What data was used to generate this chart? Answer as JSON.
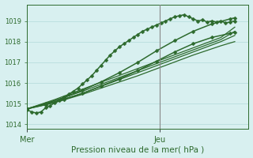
{
  "title": "",
  "xlabel": "Pression niveau de la mer( hPa )",
  "bg_color": "#d8f0f0",
  "grid_color": "#b8dede",
  "line_color": "#2d6a2d",
  "axis_label_color": "#2d6a2d",
  "tick_color": "#2d6a2d",
  "vline_color": "#888888",
  "ylim": [
    1013.8,
    1019.8
  ],
  "yticks": [
    1014,
    1015,
    1016,
    1017,
    1018,
    1019
  ],
  "xlim": [
    0,
    48
  ],
  "x_mer": 0,
  "x_jeu": 28.8,
  "lines": [
    {
      "x": [
        0,
        1,
        2,
        3,
        4,
        5,
        6,
        7,
        8,
        9,
        10,
        11,
        12,
        13,
        14,
        15,
        16,
        17,
        18,
        19,
        20,
        21,
        22,
        23,
        24,
        25,
        26,
        27,
        28,
        29,
        30,
        31,
        32,
        33,
        34,
        35,
        36,
        37,
        38,
        39,
        40,
        41,
        42,
        43,
        44,
        45
      ],
      "y": [
        1014.7,
        1014.6,
        1014.55,
        1014.6,
        1014.8,
        1014.9,
        1015.05,
        1015.15,
        1015.3,
        1015.45,
        1015.6,
        1015.75,
        1015.95,
        1016.15,
        1016.35,
        1016.6,
        1016.85,
        1017.1,
        1017.35,
        1017.55,
        1017.75,
        1017.9,
        1018.05,
        1018.2,
        1018.35,
        1018.5,
        1018.6,
        1018.7,
        1018.8,
        1018.9,
        1019.0,
        1019.1,
        1019.2,
        1019.25,
        1019.3,
        1019.2,
        1019.1,
        1019.0,
        1019.05,
        1018.95,
        1019.0,
        1018.95,
        1019.0,
        1018.9,
        1018.95,
        1019.0
      ],
      "marker": "D",
      "ms": 2.5,
      "lw": 1.1
    },
    {
      "x": [
        0,
        6,
        12,
        18,
        24,
        30,
        36,
        42,
        45
      ],
      "y": [
        1014.75,
        1015.05,
        1015.45,
        1015.9,
        1016.35,
        1016.85,
        1017.35,
        1017.8,
        1018.0
      ],
      "marker": null,
      "ms": 0,
      "lw": 0.9
    },
    {
      "x": [
        0,
        6,
        12,
        18,
        24,
        30,
        36,
        42,
        45
      ],
      "y": [
        1014.75,
        1015.1,
        1015.5,
        1016.0,
        1016.5,
        1017.0,
        1017.5,
        1018.0,
        1018.3
      ],
      "marker": null,
      "ms": 0,
      "lw": 0.9
    },
    {
      "x": [
        0,
        6,
        12,
        18,
        24,
        30,
        36,
        42,
        45
      ],
      "y": [
        1014.75,
        1015.15,
        1015.6,
        1016.1,
        1016.6,
        1017.1,
        1017.6,
        1018.1,
        1018.5
      ],
      "marker": null,
      "ms": 0,
      "lw": 0.9
    },
    {
      "x": [
        0,
        6,
        12,
        18,
        24,
        30,
        36,
        42,
        45
      ],
      "y": [
        1014.75,
        1015.2,
        1015.7,
        1016.2,
        1016.7,
        1017.2,
        1017.7,
        1018.2,
        1018.7
      ],
      "marker": null,
      "ms": 0,
      "lw": 0.9
    },
    {
      "x": [
        0,
        4,
        8,
        12,
        16,
        20,
        24,
        28,
        32,
        36,
        40,
        44,
        45
      ],
      "y": [
        1014.75,
        1014.95,
        1015.2,
        1015.5,
        1015.85,
        1016.2,
        1016.6,
        1017.05,
        1017.5,
        1017.9,
        1018.2,
        1018.4,
        1018.45
      ],
      "marker": "D",
      "ms": 2.5,
      "lw": 1.1
    },
    {
      "x": [
        0,
        4,
        8,
        12,
        16,
        20,
        24,
        28,
        32,
        36,
        40,
        44,
        45
      ],
      "y": [
        1014.75,
        1015.0,
        1015.3,
        1015.65,
        1016.05,
        1016.5,
        1017.0,
        1017.55,
        1018.05,
        1018.5,
        1018.85,
        1019.1,
        1019.15
      ],
      "marker": "D",
      "ms": 2.5,
      "lw": 1.1
    }
  ]
}
